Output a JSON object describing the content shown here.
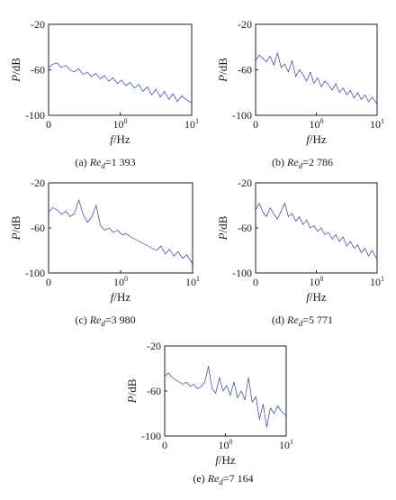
{
  "figure": {
    "panels": [
      {
        "caption_prefix": "(a) ",
        "caption_var": "Re",
        "caption_sub": "d",
        "caption_value": "=1 393"
      },
      {
        "caption_prefix": "(b) ",
        "caption_var": "Re",
        "caption_sub": "d",
        "caption_value": "=2 786"
      },
      {
        "caption_prefix": "(c) ",
        "caption_var": "Re",
        "caption_sub": "d",
        "caption_value": "=3 980"
      },
      {
        "caption_prefix": "(d) ",
        "caption_var": "Re",
        "caption_sub": "d",
        "caption_value": "=5 771"
      },
      {
        "caption_prefix": "(e) ",
        "caption_var": "Re",
        "caption_sub": "d",
        "caption_value": "=7 164"
      }
    ]
  },
  "chart_data": [
    {
      "type": "line",
      "xlabel_var": "f",
      "xlabel_unit": "/Hz",
      "ylabel_var": "P",
      "ylabel_unit": "/dB",
      "xlim": [
        0,
        10
      ],
      "ylim": [
        -100,
        -20
      ],
      "x_ticks": [
        {
          "label": "0",
          "base": "",
          "exp": ""
        },
        {
          "label": "",
          "base": "10",
          "exp": "0"
        },
        {
          "label": "",
          "base": "10",
          "exp": "1"
        }
      ],
      "y_ticks": [
        "-20",
        "-60",
        "-100"
      ],
      "series_color": "#2a3f9e",
      "x": [
        0,
        0.3,
        0.6,
        0.9,
        1.2,
        1.5,
        1.8,
        2.1,
        2.4,
        2.7,
        3.0,
        3.3,
        3.6,
        3.9,
        4.2,
        4.5,
        4.8,
        5.1,
        5.4,
        5.7,
        6.0,
        6.3,
        6.6,
        6.9,
        7.2,
        7.5,
        7.8,
        8.1,
        8.4,
        8.7,
        9.0,
        9.3,
        9.6,
        10.0
      ],
      "series": [
        {
          "values": [
            -58,
            -55,
            -54,
            -58,
            -56,
            -60,
            -62,
            -59,
            -64,
            -62,
            -66,
            -63,
            -68,
            -65,
            -70,
            -67,
            -72,
            -69,
            -74,
            -71,
            -76,
            -73,
            -79,
            -75,
            -82,
            -77,
            -84,
            -79,
            -86,
            -81,
            -88,
            -83,
            -86,
            -89
          ]
        }
      ]
    },
    {
      "type": "line",
      "xlabel_var": "f",
      "xlabel_unit": "/Hz",
      "ylabel_var": "P",
      "ylabel_unit": "/dB",
      "xlim": [
        0,
        10
      ],
      "ylim": [
        -100,
        -20
      ],
      "x_ticks": [
        {
          "label": "0",
          "base": "",
          "exp": ""
        },
        {
          "label": "",
          "base": "10",
          "exp": "0"
        },
        {
          "label": "",
          "base": "10",
          "exp": "1"
        }
      ],
      "y_ticks": [
        "-20",
        "-60",
        "-100"
      ],
      "series_color": "#2a3f9e",
      "x": [
        0,
        0.3,
        0.6,
        0.9,
        1.2,
        1.5,
        1.8,
        2.1,
        2.4,
        2.7,
        3.0,
        3.3,
        3.6,
        3.9,
        4.2,
        4.5,
        4.8,
        5.1,
        5.4,
        5.7,
        6.0,
        6.3,
        6.6,
        6.9,
        7.2,
        7.5,
        7.8,
        8.1,
        8.4,
        8.7,
        9.0,
        9.3,
        9.6,
        10.0
      ],
      "series": [
        {
          "values": [
            -52,
            -47,
            -50,
            -53,
            -48,
            -56,
            -45,
            -58,
            -55,
            -62,
            -52,
            -66,
            -60,
            -64,
            -70,
            -62,
            -72,
            -67,
            -75,
            -70,
            -73,
            -78,
            -72,
            -80,
            -76,
            -82,
            -78,
            -85,
            -80,
            -86,
            -82,
            -88,
            -84,
            -90
          ]
        }
      ]
    },
    {
      "type": "line",
      "xlabel_var": "f",
      "xlabel_unit": "/Hz",
      "ylabel_var": "P",
      "ylabel_unit": "/dB",
      "xlim": [
        0,
        10
      ],
      "ylim": [
        -100,
        -20
      ],
      "x_ticks": [
        {
          "label": "0",
          "base": "",
          "exp": ""
        },
        {
          "label": "",
          "base": "10",
          "exp": "0"
        },
        {
          "label": "",
          "base": "10",
          "exp": "1"
        }
      ],
      "y_ticks": [
        "-20",
        "-60",
        "-100"
      ],
      "series_color": "#2a3f9e",
      "x": [
        0,
        0.3,
        0.6,
        0.9,
        1.2,
        1.5,
        1.8,
        2.1,
        2.4,
        2.7,
        3.0,
        3.3,
        3.6,
        3.9,
        4.2,
        4.5,
        4.8,
        5.1,
        5.4,
        5.7,
        6.0,
        6.3,
        6.6,
        6.9,
        7.2,
        7.5,
        7.8,
        8.1,
        8.4,
        8.7,
        9.0,
        9.3,
        9.6,
        10.0
      ],
      "series": [
        {
          "values": [
            -46,
            -42,
            -44,
            -48,
            -45,
            -50,
            -47,
            -35,
            -48,
            -55,
            -50,
            -40,
            -58,
            -62,
            -60,
            -64,
            -62,
            -66,
            -65,
            -68,
            -70,
            -72,
            -74,
            -76,
            -78,
            -80,
            -76,
            -83,
            -79,
            -85,
            -81,
            -87,
            -84,
            -92
          ]
        }
      ]
    },
    {
      "type": "line",
      "xlabel_var": "f",
      "xlabel_unit": "/Hz",
      "ylabel_var": "P",
      "ylabel_unit": "/dB",
      "xlim": [
        0,
        10
      ],
      "ylim": [
        -100,
        -20
      ],
      "x_ticks": [
        {
          "label": "0",
          "base": "",
          "exp": ""
        },
        {
          "label": "",
          "base": "10",
          "exp": "0"
        },
        {
          "label": "",
          "base": "10",
          "exp": "1"
        }
      ],
      "y_ticks": [
        "-20",
        "-60",
        "-100"
      ],
      "series_color": "#2a3f9e",
      "x": [
        0,
        0.3,
        0.6,
        0.9,
        1.2,
        1.5,
        1.8,
        2.1,
        2.4,
        2.7,
        3.0,
        3.3,
        3.6,
        3.9,
        4.2,
        4.5,
        4.8,
        5.1,
        5.4,
        5.7,
        6.0,
        6.3,
        6.6,
        6.9,
        7.2,
        7.5,
        7.8,
        8.1,
        8.4,
        8.7,
        9.0,
        9.3,
        9.6,
        10.0
      ],
      "series": [
        {
          "values": [
            -44,
            -38,
            -46,
            -50,
            -42,
            -48,
            -52,
            -45,
            -38,
            -50,
            -47,
            -54,
            -50,
            -57,
            -53,
            -60,
            -58,
            -63,
            -60,
            -66,
            -64,
            -70,
            -66,
            -72,
            -68,
            -76,
            -72,
            -78,
            -75,
            -82,
            -78,
            -85,
            -80,
            -88
          ]
        }
      ]
    },
    {
      "type": "line",
      "xlabel_var": "f",
      "xlabel_unit": "/Hz",
      "ylabel_var": "P",
      "ylabel_unit": "/dB",
      "xlim": [
        0,
        10
      ],
      "ylim": [
        -100,
        -20
      ],
      "x_ticks": [
        {
          "label": "0",
          "base": "",
          "exp": ""
        },
        {
          "label": "",
          "base": "10",
          "exp": "0"
        },
        {
          "label": "",
          "base": "10",
          "exp": "1"
        }
      ],
      "y_ticks": [
        "-20",
        "-60",
        "-100"
      ],
      "series_color": "#2a3f9e",
      "x": [
        0,
        0.3,
        0.6,
        0.9,
        1.2,
        1.5,
        1.8,
        2.1,
        2.4,
        2.7,
        3.0,
        3.3,
        3.6,
        3.9,
        4.2,
        4.5,
        4.8,
        5.1,
        5.4,
        5.7,
        6.0,
        6.3,
        6.6,
        6.9,
        7.2,
        7.5,
        7.8,
        8.1,
        8.4,
        8.7,
        9.0,
        9.3,
        9.6,
        10.0
      ],
      "series": [
        {
          "values": [
            -47,
            -44,
            -48,
            -50,
            -52,
            -54,
            -52,
            -56,
            -54,
            -58,
            -56,
            -52,
            -38,
            -58,
            -62,
            -48,
            -60,
            -55,
            -64,
            -52,
            -66,
            -60,
            -68,
            -48,
            -70,
            -65,
            -85,
            -72,
            -92,
            -75,
            -80,
            -73,
            -78,
            -82
          ]
        }
      ]
    }
  ]
}
